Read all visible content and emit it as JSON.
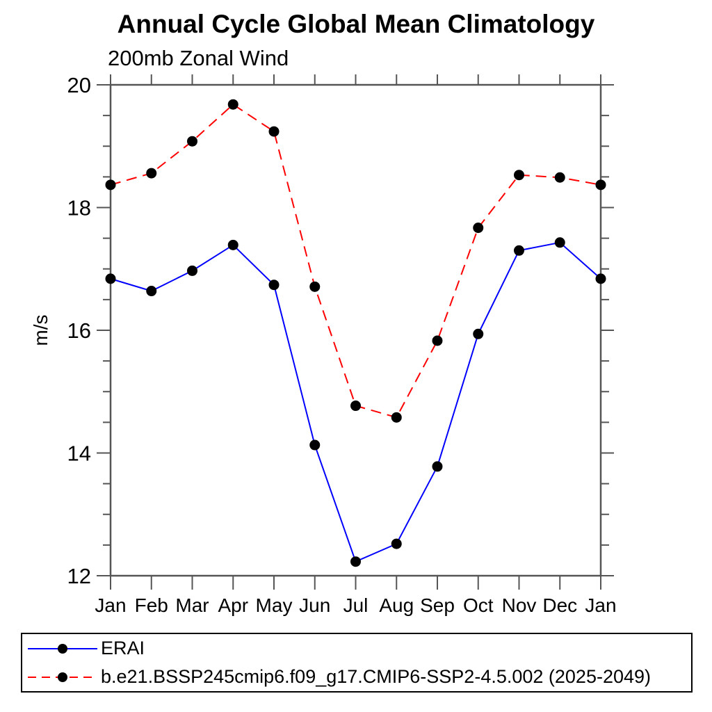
{
  "header": {
    "title": "Annual Cycle Global Mean Climatology",
    "subtitle": "200mb Zonal Wind"
  },
  "chart_data": {
    "type": "line",
    "title": "Annual Cycle Global Mean Climatology",
    "subtitle": "200mb Zonal Wind",
    "xlabel": "",
    "ylabel": "m/s",
    "ylim": [
      12,
      20
    ],
    "ytick_major": [
      12,
      14,
      16,
      18,
      20
    ],
    "ytick_minor_step": 0.5,
    "grid": false,
    "legend_position": "bottom",
    "axis_color": "#555555",
    "text_color": "#000000",
    "marker_color": "#000000",
    "categories": [
      "Jan",
      "Feb",
      "Mar",
      "Apr",
      "May",
      "Jun",
      "Jul",
      "Aug",
      "Sep",
      "Oct",
      "Nov",
      "Dec",
      "Jan"
    ],
    "series": [
      {
        "name": "ERAI",
        "color": "#0000ff",
        "style": "solid",
        "marker": "filled-circle",
        "values": [
          16.84,
          16.64,
          16.97,
          17.39,
          16.74,
          14.13,
          12.23,
          12.52,
          13.78,
          15.94,
          17.3,
          17.43,
          16.84
        ]
      },
      {
        "name": "b.e21.BSSP245cmip6.f09_g17.CMIP6-SSP2-4.5.002 (2025-2049)",
        "color": "#ff0000",
        "style": "dashed",
        "marker": "filled-circle",
        "values": [
          18.37,
          18.56,
          19.08,
          19.68,
          19.24,
          16.71,
          14.77,
          14.58,
          15.83,
          17.67,
          18.53,
          18.49,
          18.37
        ]
      }
    ]
  }
}
